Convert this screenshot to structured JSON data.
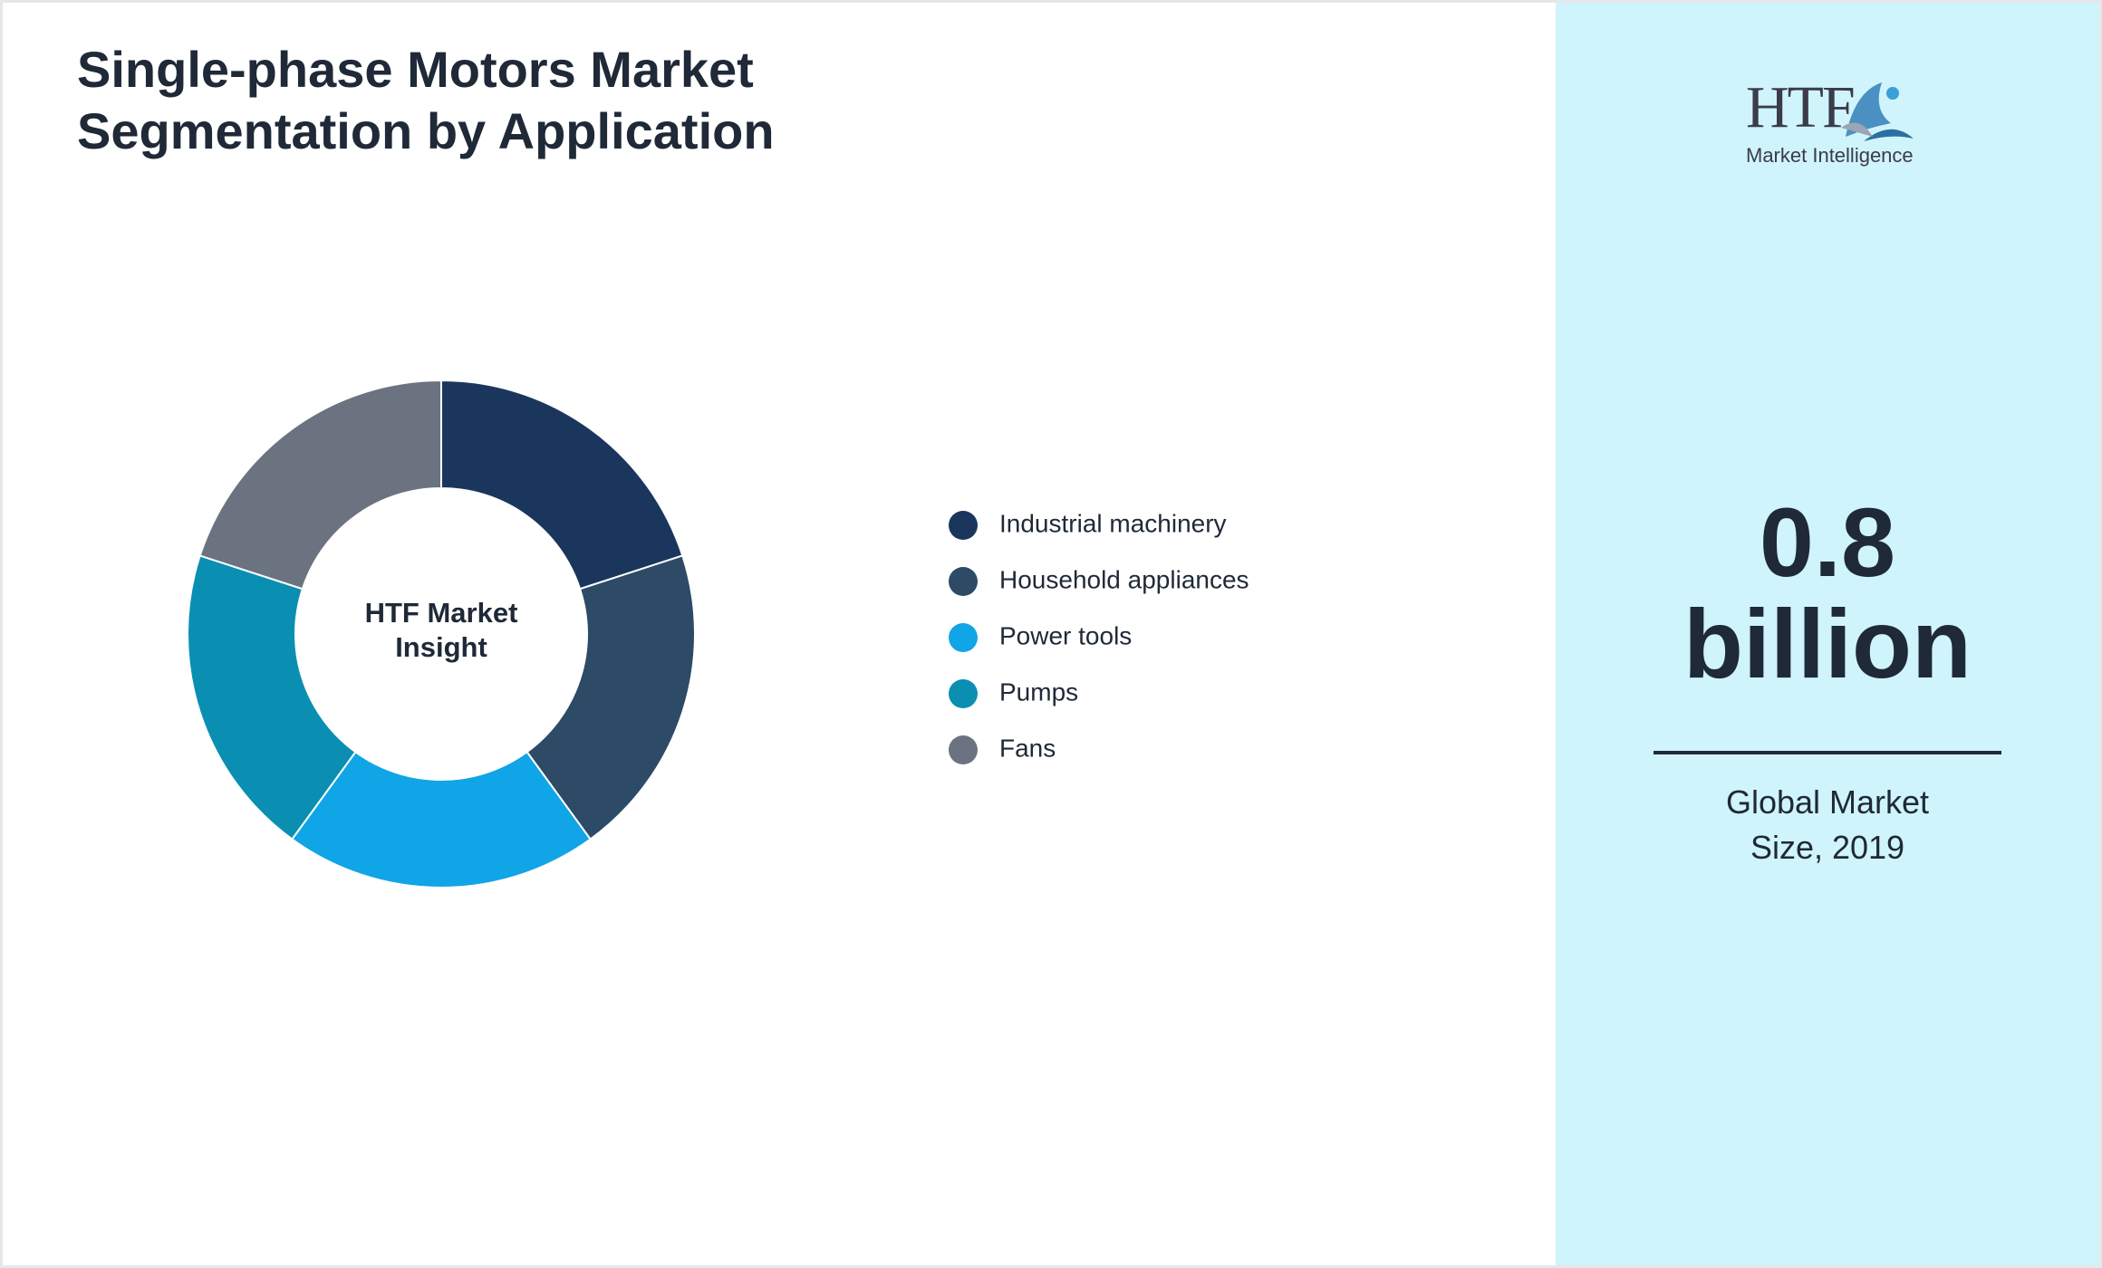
{
  "chart_data": {
    "type": "pie",
    "title": "Single-phase Motors Market Segmentation by Application",
    "center_label": "HTF Market Insight",
    "categories": [
      "Industrial machinery",
      "Household appliances",
      "Power tools",
      "Pumps",
      "Fans"
    ],
    "values": [
      20,
      20,
      20,
      20,
      20
    ],
    "colors": [
      "#1b365d",
      "#2d4a66",
      "#10a5e6",
      "#0a8fb3",
      "#6b7280"
    ]
  },
  "logo": {
    "name": "HTF",
    "tagline": "Market Intelligence"
  },
  "stat": {
    "value": "0.8",
    "unit": "billion",
    "caption": "Global Market Size, 2019"
  }
}
